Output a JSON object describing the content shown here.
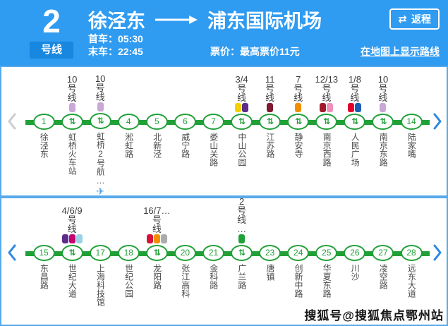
{
  "header": {
    "line_number": "2",
    "line_suffix": "号线",
    "from": "徐泾东",
    "to": "浦东国际机场",
    "first_train": "首车：05:30",
    "last_train": "末车：22:45",
    "fare": "票价：最高票价11元",
    "map_link": "在地图上显示路线",
    "return_icon": "⇄",
    "return_button": "返程"
  },
  "icons": {
    "transfer_glyph": "⇅",
    "plane_glyph": "✈"
  },
  "colors": {
    "header_bg": "#2F9BF1",
    "header_band": "#1787E0",
    "panel_border": "#58A9E9",
    "line_green": "#21A038",
    "chevron_active": "#2B87E0",
    "chevron_disabled": "#C9CDD1",
    "plane_blue": "#49A0E6"
  },
  "watermark": "搜狐号@搜狐焦点鄂州站",
  "panels": [
    {
      "left_chevron_active": false,
      "right_chevron_active": true,
      "stations": [
        {
          "num": "1",
          "name": "徐泾东"
        },
        {
          "name": "虹桥火车站",
          "transfer": true,
          "label_num": "10",
          "label_suffix": "号线",
          "ticks": [
            "#C9A7D6"
          ]
        },
        {
          "name": "虹桥2号航…",
          "plane": true,
          "transfer": true,
          "label_num": "10",
          "label_suffix": "号线",
          "ticks": [
            "#C9A7D6"
          ]
        },
        {
          "num": "4",
          "name": "淞虹路"
        },
        {
          "num": "5",
          "name": "北新泾"
        },
        {
          "num": "6",
          "name": "威宁路"
        },
        {
          "num": "7",
          "name": "娄山关路"
        },
        {
          "name": "中山公园",
          "transfer": true,
          "label_num": "3/4",
          "label_suffix": "号线",
          "ticks": [
            "#F5D000",
            "#5F2C8E"
          ]
        },
        {
          "name": "江苏路",
          "transfer": true,
          "label_num": "11",
          "label_suffix": "号线",
          "ticks": [
            "#7E1B32"
          ]
        },
        {
          "name": "静安寺",
          "transfer": true,
          "label_num": "7",
          "label_suffix": "号线",
          "ticks": [
            "#F28E00"
          ]
        },
        {
          "name": "南京西路",
          "transfer": true,
          "label_num": "12/13",
          "label_suffix": "号线",
          "ticks": [
            "#A21A2C",
            "#F08FB9"
          ]
        },
        {
          "name": "人民广场",
          "transfer": true,
          "label_num": "1/8",
          "label_suffix": "号线",
          "ticks": [
            "#E3002B",
            "#1D5CB4"
          ]
        },
        {
          "name": "南京东路",
          "transfer": true,
          "label_num": "10",
          "label_suffix": "号线",
          "ticks": [
            "#C9A7D6"
          ]
        },
        {
          "num": "14",
          "name": "陆家嘴"
        }
      ]
    },
    {
      "left_chevron_active": true,
      "right_chevron_active": true,
      "stations": [
        {
          "num": "15",
          "name": "东昌路"
        },
        {
          "name": "世纪大道",
          "transfer": true,
          "label_num": "4/6/9",
          "label_suffix": "号线",
          "ticks": [
            "#5F2C8E",
            "#C70072",
            "#9BD3E6"
          ]
        },
        {
          "num": "17",
          "name": "上海科技馆"
        },
        {
          "num": "18",
          "name": "世纪公园"
        },
        {
          "name": "龙阳路",
          "transfer": true,
          "label_num": "16/7…",
          "label_suffix": "号线",
          "ticks": [
            "#D6123C",
            "#F28E00",
            "#ABABAB"
          ]
        },
        {
          "num": "20",
          "name": "张江高科"
        },
        {
          "num": "21",
          "name": "金科路"
        },
        {
          "name": "广兰路",
          "transfer": true,
          "label_num": "2",
          "label_suffix": "号线",
          "label_tail": "…",
          "ticks": [
            "#21A038"
          ]
        },
        {
          "num": "23",
          "name": "唐镇"
        },
        {
          "num": "24",
          "name": "创新中路"
        },
        {
          "num": "25",
          "name": "华夏东路"
        },
        {
          "num": "26",
          "name": "川沙"
        },
        {
          "num": "27",
          "name": "凌空路"
        },
        {
          "num": "28",
          "name": "远东大道"
        }
      ]
    }
  ]
}
